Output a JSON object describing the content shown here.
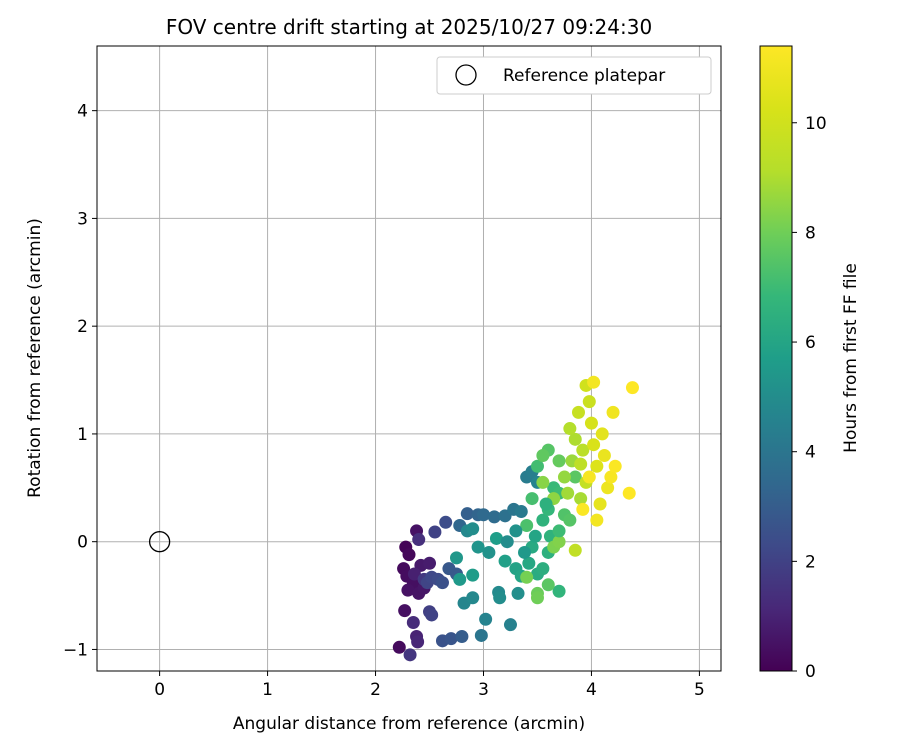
{
  "chart_data": {
    "type": "scatter",
    "title": "FOV centre drift starting at 2025/10/27 09:24:30",
    "xlabel": "Angular distance from reference (arcmin)",
    "ylabel": "Rotation from reference (arcmin)",
    "xlim": [
      -0.58,
      5.2
    ],
    "ylim": [
      -1.2,
      4.6
    ],
    "xticks": [
      0,
      1,
      2,
      3,
      4,
      5
    ],
    "yticks": [
      -1,
      0,
      1,
      2,
      3,
      4
    ],
    "grid": true,
    "legend": {
      "placement": "top-right",
      "entries": [
        "Reference platepar"
      ]
    },
    "reference_point": {
      "x": 0,
      "y": 0,
      "label": "Reference platepar",
      "marker": "open-circle"
    },
    "colorbar": {
      "label": "Hours from first FF file",
      "colormap": "viridis",
      "range": [
        0,
        11.4
      ],
      "ticks": [
        0,
        2,
        4,
        6,
        8,
        10
      ]
    },
    "series": [
      {
        "colored_by": "hours",
        "points": [
          {
            "x": 2.28,
            "y": -0.05,
            "c": 0.1
          },
          {
            "x": 2.31,
            "y": -0.12,
            "c": 0.2
          },
          {
            "x": 2.26,
            "y": -0.25,
            "c": 0.3
          },
          {
            "x": 2.29,
            "y": -0.32,
            "c": 0.35
          },
          {
            "x": 2.35,
            "y": -0.38,
            "c": 0.4
          },
          {
            "x": 2.3,
            "y": -0.45,
            "c": 0.5
          },
          {
            "x": 2.4,
            "y": -0.48,
            "c": 0.55
          },
          {
            "x": 2.45,
            "y": -0.43,
            "c": 0.6
          },
          {
            "x": 2.27,
            "y": -0.64,
            "c": 0.45
          },
          {
            "x": 2.22,
            "y": -0.98,
            "c": 0.3
          },
          {
            "x": 2.38,
            "y": 0.1,
            "c": 0.5
          },
          {
            "x": 2.42,
            "y": -0.22,
            "c": 0.7
          },
          {
            "x": 2.5,
            "y": -0.2,
            "c": 0.8
          },
          {
            "x": 2.36,
            "y": -0.3,
            "c": 0.9
          },
          {
            "x": 2.38,
            "y": -0.88,
            "c": 1.0
          },
          {
            "x": 2.39,
            "y": -0.93,
            "c": 1.1
          },
          {
            "x": 2.35,
            "y": -0.75,
            "c": 1.3
          },
          {
            "x": 2.32,
            "y": -1.05,
            "c": 1.6
          },
          {
            "x": 2.4,
            "y": 0.02,
            "c": 1.4
          },
          {
            "x": 2.45,
            "y": -0.35,
            "c": 1.7
          },
          {
            "x": 2.5,
            "y": -0.65,
            "c": 1.9
          },
          {
            "x": 2.52,
            "y": -0.68,
            "c": 2.0
          },
          {
            "x": 2.55,
            "y": 0.09,
            "c": 2.0
          },
          {
            "x": 2.48,
            "y": -0.38,
            "c": 2.1
          },
          {
            "x": 2.52,
            "y": -0.33,
            "c": 2.2
          },
          {
            "x": 2.58,
            "y": -0.35,
            "c": 2.3
          },
          {
            "x": 2.62,
            "y": -0.38,
            "c": 2.5
          },
          {
            "x": 2.65,
            "y": 0.18,
            "c": 2.4
          },
          {
            "x": 2.62,
            "y": -0.92,
            "c": 2.6
          },
          {
            "x": 2.7,
            "y": -0.9,
            "c": 2.7
          },
          {
            "x": 2.75,
            "y": -0.3,
            "c": 2.9
          },
          {
            "x": 2.68,
            "y": -0.25,
            "c": 2.8
          },
          {
            "x": 2.8,
            "y": -0.88,
            "c": 3.0
          },
          {
            "x": 2.85,
            "y": 0.26,
            "c": 3.1
          },
          {
            "x": 2.95,
            "y": 0.25,
            "c": 3.3
          },
          {
            "x": 3.0,
            "y": 0.25,
            "c": 3.5
          },
          {
            "x": 2.78,
            "y": 0.15,
            "c": 3.4
          },
          {
            "x": 3.1,
            "y": 0.23,
            "c": 3.6
          },
          {
            "x": 3.2,
            "y": 0.24,
            "c": 3.8
          },
          {
            "x": 3.28,
            "y": 0.3,
            "c": 4.0
          },
          {
            "x": 3.35,
            "y": 0.28,
            "c": 4.2
          },
          {
            "x": 3.4,
            "y": 0.6,
            "c": 4.3
          },
          {
            "x": 3.45,
            "y": 0.65,
            "c": 4.4
          },
          {
            "x": 3.5,
            "y": 0.55,
            "c": 4.6
          },
          {
            "x": 2.98,
            "y": -0.87,
            "c": 4.0
          },
          {
            "x": 3.25,
            "y": -0.77,
            "c": 4.5
          },
          {
            "x": 3.02,
            "y": -0.72,
            "c": 4.6
          },
          {
            "x": 2.82,
            "y": -0.57,
            "c": 4.7
          },
          {
            "x": 2.9,
            "y": -0.52,
            "c": 4.8
          },
          {
            "x": 3.14,
            "y": -0.47,
            "c": 4.9
          },
          {
            "x": 3.15,
            "y": -0.52,
            "c": 5.0
          },
          {
            "x": 3.32,
            "y": -0.48,
            "c": 5.1
          },
          {
            "x": 2.85,
            "y": 0.1,
            "c": 4.8
          },
          {
            "x": 2.9,
            "y": 0.12,
            "c": 5.0
          },
          {
            "x": 3.05,
            "y": -0.1,
            "c": 5.2
          },
          {
            "x": 2.95,
            "y": -0.05,
            "c": 5.3
          },
          {
            "x": 2.75,
            "y": -0.15,
            "c": 5.4
          },
          {
            "x": 2.78,
            "y": -0.35,
            "c": 5.5
          },
          {
            "x": 2.9,
            "y": -0.31,
            "c": 5.6
          },
          {
            "x": 3.12,
            "y": 0.03,
            "c": 5.7
          },
          {
            "x": 3.2,
            "y": -0.18,
            "c": 5.8
          },
          {
            "x": 3.3,
            "y": -0.25,
            "c": 5.9
          },
          {
            "x": 3.35,
            "y": -0.32,
            "c": 6.0
          },
          {
            "x": 3.42,
            "y": -0.2,
            "c": 6.1
          },
          {
            "x": 3.45,
            "y": -0.05,
            "c": 6.2
          },
          {
            "x": 3.5,
            "y": -0.3,
            "c": 6.3
          },
          {
            "x": 3.55,
            "y": -0.25,
            "c": 6.4
          },
          {
            "x": 3.6,
            "y": -0.1,
            "c": 6.5
          },
          {
            "x": 3.62,
            "y": 0.05,
            "c": 6.6
          },
          {
            "x": 3.7,
            "y": -0.46,
            "c": 6.7
          },
          {
            "x": 3.55,
            "y": 0.2,
            "c": 6.6
          },
          {
            "x": 3.6,
            "y": 0.3,
            "c": 6.8
          },
          {
            "x": 3.65,
            "y": 0.5,
            "c": 6.9
          },
          {
            "x": 3.7,
            "y": 0.45,
            "c": 7.0
          },
          {
            "x": 3.5,
            "y": 0.7,
            "c": 7.1
          },
          {
            "x": 3.45,
            "y": 0.4,
            "c": 7.2
          },
          {
            "x": 3.4,
            "y": 0.15,
            "c": 7.3
          },
          {
            "x": 3.75,
            "y": 0.25,
            "c": 7.4
          },
          {
            "x": 3.8,
            "y": 0.2,
            "c": 7.5
          },
          {
            "x": 3.85,
            "y": 0.6,
            "c": 7.6
          },
          {
            "x": 3.6,
            "y": 0.85,
            "c": 7.5
          },
          {
            "x": 3.55,
            "y": 0.8,
            "c": 7.7
          },
          {
            "x": 3.7,
            "y": 0.75,
            "c": 7.8
          },
          {
            "x": 3.6,
            "y": -0.4,
            "c": 7.6
          },
          {
            "x": 3.5,
            "y": -0.48,
            "c": 7.9
          },
          {
            "x": 3.5,
            "y": -0.52,
            "c": 8.0
          },
          {
            "x": 3.4,
            "y": -0.33,
            "c": 8.1
          },
          {
            "x": 3.65,
            "y": -0.05,
            "c": 8.2
          },
          {
            "x": 3.7,
            "y": 0.0,
            "c": 8.3
          },
          {
            "x": 3.55,
            "y": 0.55,
            "c": 8.4
          },
          {
            "x": 3.65,
            "y": 0.4,
            "c": 8.5
          },
          {
            "x": 3.75,
            "y": 0.6,
            "c": 8.6
          },
          {
            "x": 3.82,
            "y": 0.75,
            "c": 8.7
          },
          {
            "x": 3.78,
            "y": 0.45,
            "c": 8.8
          },
          {
            "x": 3.9,
            "y": 0.4,
            "c": 8.9
          },
          {
            "x": 3.85,
            "y": 0.95,
            "c": 9.0
          },
          {
            "x": 3.8,
            "y": 1.05,
            "c": 9.1
          },
          {
            "x": 3.92,
            "y": 0.85,
            "c": 9.3
          },
          {
            "x": 3.9,
            "y": 0.72,
            "c": 9.4
          },
          {
            "x": 3.85,
            "y": -0.08,
            "c": 9.5
          },
          {
            "x": 3.95,
            "y": 0.55,
            "c": 9.6
          },
          {
            "x": 3.98,
            "y": 1.3,
            "c": 9.8
          },
          {
            "x": 3.88,
            "y": 1.2,
            "c": 9.7
          },
          {
            "x": 3.95,
            "y": 1.45,
            "c": 10.0
          },
          {
            "x": 4.0,
            "y": 1.1,
            "c": 10.2
          },
          {
            "x": 4.02,
            "y": 0.9,
            "c": 10.3
          },
          {
            "x": 4.05,
            "y": 0.7,
            "c": 10.4
          },
          {
            "x": 4.1,
            "y": 1.0,
            "c": 10.6
          },
          {
            "x": 4.08,
            "y": 0.35,
            "c": 10.7
          },
          {
            "x": 4.12,
            "y": 0.8,
            "c": 10.8
          },
          {
            "x": 4.15,
            "y": 0.5,
            "c": 10.9
          },
          {
            "x": 4.2,
            "y": 1.2,
            "c": 11.0
          },
          {
            "x": 4.02,
            "y": 1.48,
            "c": 11.1
          },
          {
            "x": 4.18,
            "y": 0.6,
            "c": 11.2
          },
          {
            "x": 4.22,
            "y": 0.7,
            "c": 11.3
          },
          {
            "x": 3.92,
            "y": 0.3,
            "c": 11.3
          },
          {
            "x": 4.35,
            "y": 0.45,
            "c": 11.4
          },
          {
            "x": 4.38,
            "y": 1.43,
            "c": 11.4
          },
          {
            "x": 3.98,
            "y": 0.6,
            "c": 11.2
          },
          {
            "x": 4.05,
            "y": 0.2,
            "c": 11.1
          },
          {
            "x": 3.7,
            "y": 0.1,
            "c": 7.0
          },
          {
            "x": 3.58,
            "y": 0.35,
            "c": 6.5
          },
          {
            "x": 3.48,
            "y": 0.05,
            "c": 6.0
          },
          {
            "x": 3.38,
            "y": -0.1,
            "c": 5.5
          },
          {
            "x": 3.3,
            "y": 0.1,
            "c": 5.2
          },
          {
            "x": 3.22,
            "y": 0.0,
            "c": 5.0
          }
        ]
      }
    ]
  }
}
